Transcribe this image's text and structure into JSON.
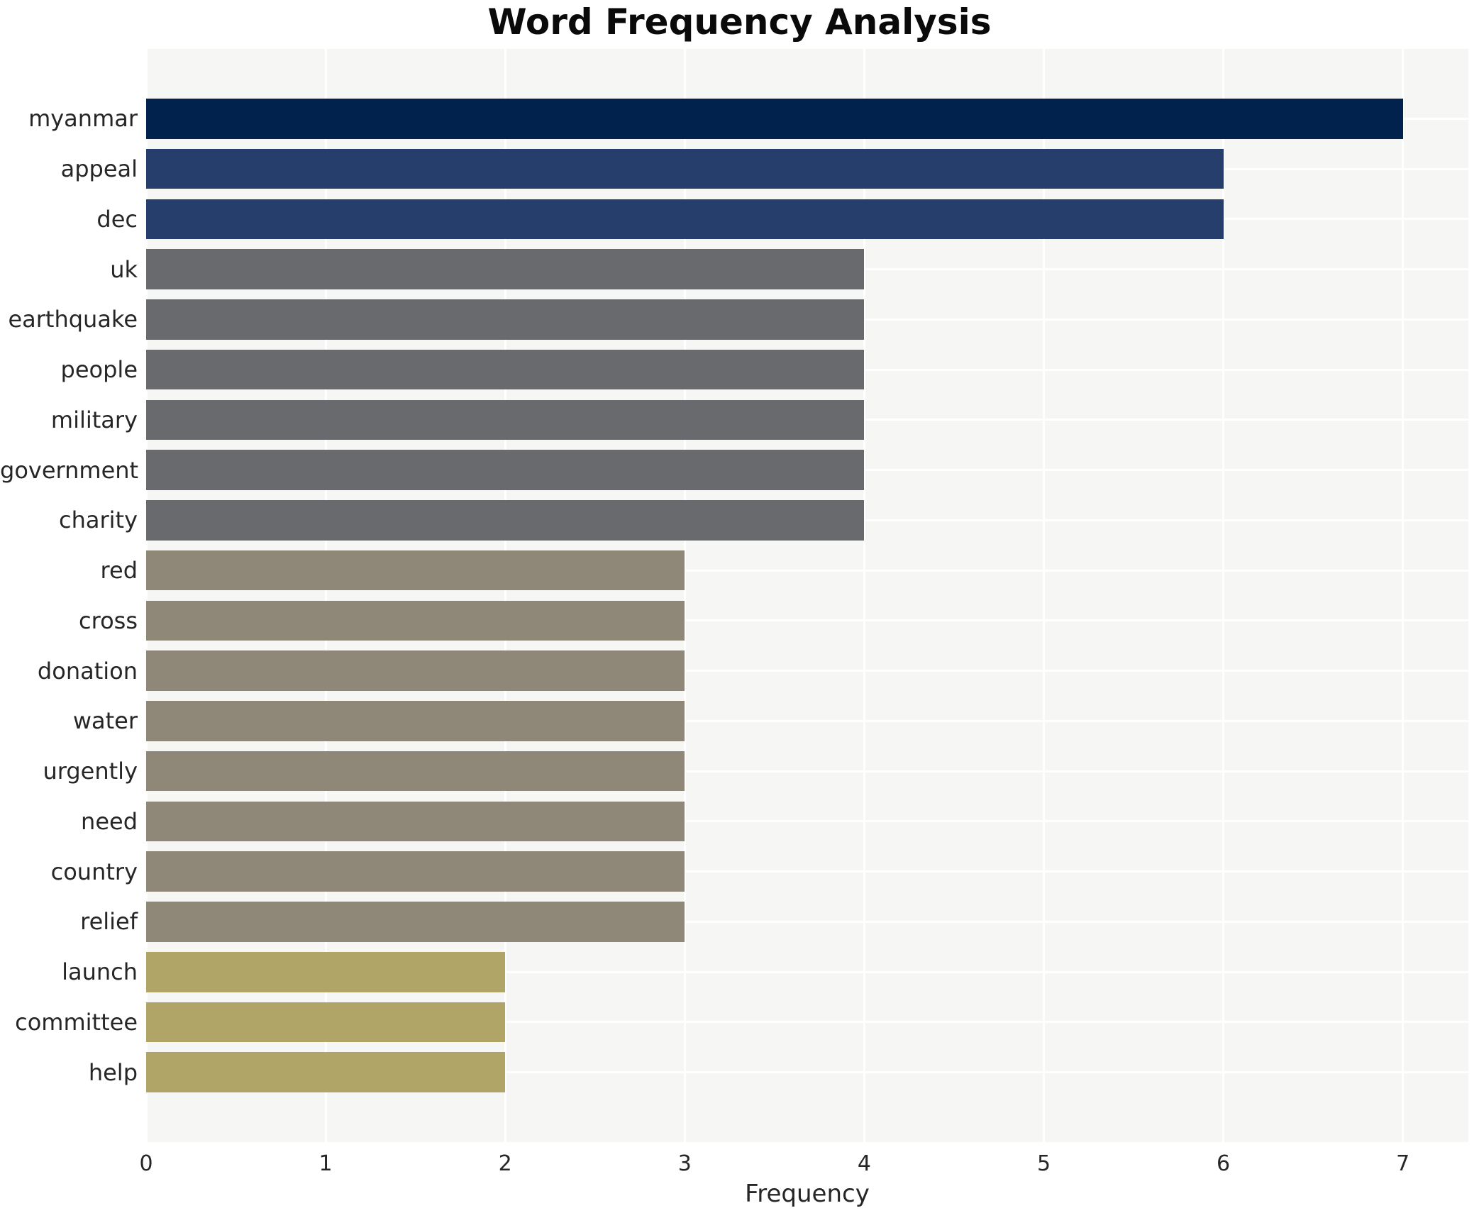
{
  "chart_data": {
    "type": "bar",
    "orientation": "horizontal",
    "title": "Word Frequency Analysis",
    "xlabel": "Frequency",
    "ylabel": "",
    "categories": [
      "myanmar",
      "appeal",
      "dec",
      "uk",
      "earthquake",
      "people",
      "military",
      "government",
      "charity",
      "red",
      "cross",
      "donation",
      "water",
      "urgently",
      "need",
      "country",
      "relief",
      "launch",
      "committee",
      "help"
    ],
    "values": [
      7,
      6,
      6,
      4,
      4,
      4,
      4,
      4,
      4,
      3,
      3,
      3,
      3,
      3,
      3,
      3,
      3,
      2,
      2,
      2
    ],
    "xticks": [
      "0",
      "1",
      "2",
      "3",
      "4",
      "5",
      "6",
      "7"
    ],
    "xlim": [
      0,
      7.36
    ],
    "grid": true,
    "legend_position": "none",
    "bar_colors_by_value": {
      "7": "#02224e",
      "6": "#253e6b",
      "4": "#696a6d",
      "3": "#8f8878",
      "2": "#b0a467"
    },
    "plot_background": "#f6f6f5",
    "grid_color": "#ffffff",
    "text_color": "#262626",
    "title_color": "#0a0a0a"
  }
}
